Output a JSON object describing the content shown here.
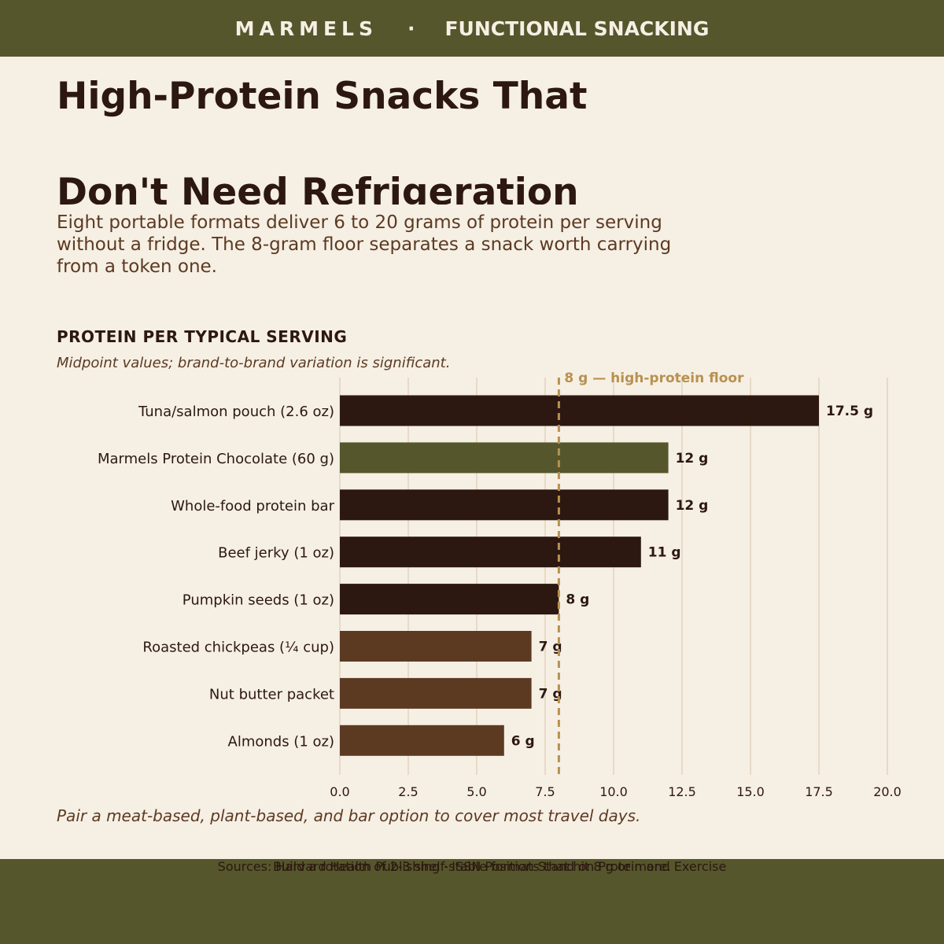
{
  "header": {
    "brand": "MARMELS",
    "separator": "·",
    "tagline": "FUNCTIONAL SNACKING"
  },
  "title_lines": [
    "High-Protein Snacks That",
    "Don't Need Refrigeration"
  ],
  "subtitle": "Eight portable formats deliver 6 to 20 grams of protein per serving without a fridge. The 8-gram floor separates a snack worth carrying from a token one.",
  "section": {
    "heading": "PROTEIN PER TYPICAL SERVING",
    "note": "Midpoint values; brand-to-brand variation is significant."
  },
  "chart_data": {
    "type": "bar",
    "orientation": "horizontal",
    "categories": [
      "Tuna/salmon pouch (2.6 oz)",
      "Marmels Protein Chocolate (60 g)",
      "Whole-food protein bar",
      "Beef jerky (1 oz)",
      "Pumpkin seeds (1 oz)",
      "Roasted chickpeas (¼ cup)",
      "Nut butter packet",
      "Almonds (1 oz)"
    ],
    "values": [
      17.5,
      12,
      12,
      11,
      8,
      7,
      7,
      6
    ],
    "value_labels": [
      "17.5 g",
      "12 g",
      "12 g",
      "11 g",
      "8 g",
      "7 g",
      "7 g",
      "6 g"
    ],
    "bar_colors": [
      "#2c1810",
      "#55562c",
      "#2c1810",
      "#2c1810",
      "#2c1810",
      "#5c3a22",
      "#5c3a22",
      "#5c3a22"
    ],
    "xlim": [
      0,
      20
    ],
    "xticks": [
      0,
      2.5,
      5,
      7.5,
      10,
      12.5,
      15,
      17.5,
      20
    ],
    "xtick_labels": [
      "0.0",
      "2.5",
      "5.0",
      "7.5",
      "10.0",
      "12.5",
      "15.0",
      "17.5",
      "20.0"
    ],
    "grid": true,
    "reference_line": {
      "value": 8,
      "label": "8 g — high-protein floor",
      "color": "#b8914f"
    }
  },
  "footnote": "Pair a meat-based, plant-based, and bar option to cover most travel days.",
  "footer": {
    "cta": "Build a rotation of 2-3 shelf-stable formats that hit 8 g or more.",
    "sources": "Sources: Harvard Health Publishing  ·  ISSN Position Stand on Protein and Exercise"
  },
  "colors": {
    "background": "#f6efe4",
    "banner": "#55562c",
    "text_dark": "#2c1810",
    "text_brown": "#5c3a22",
    "accent_gold": "#b8914f",
    "grid": "#e3d3bd"
  }
}
